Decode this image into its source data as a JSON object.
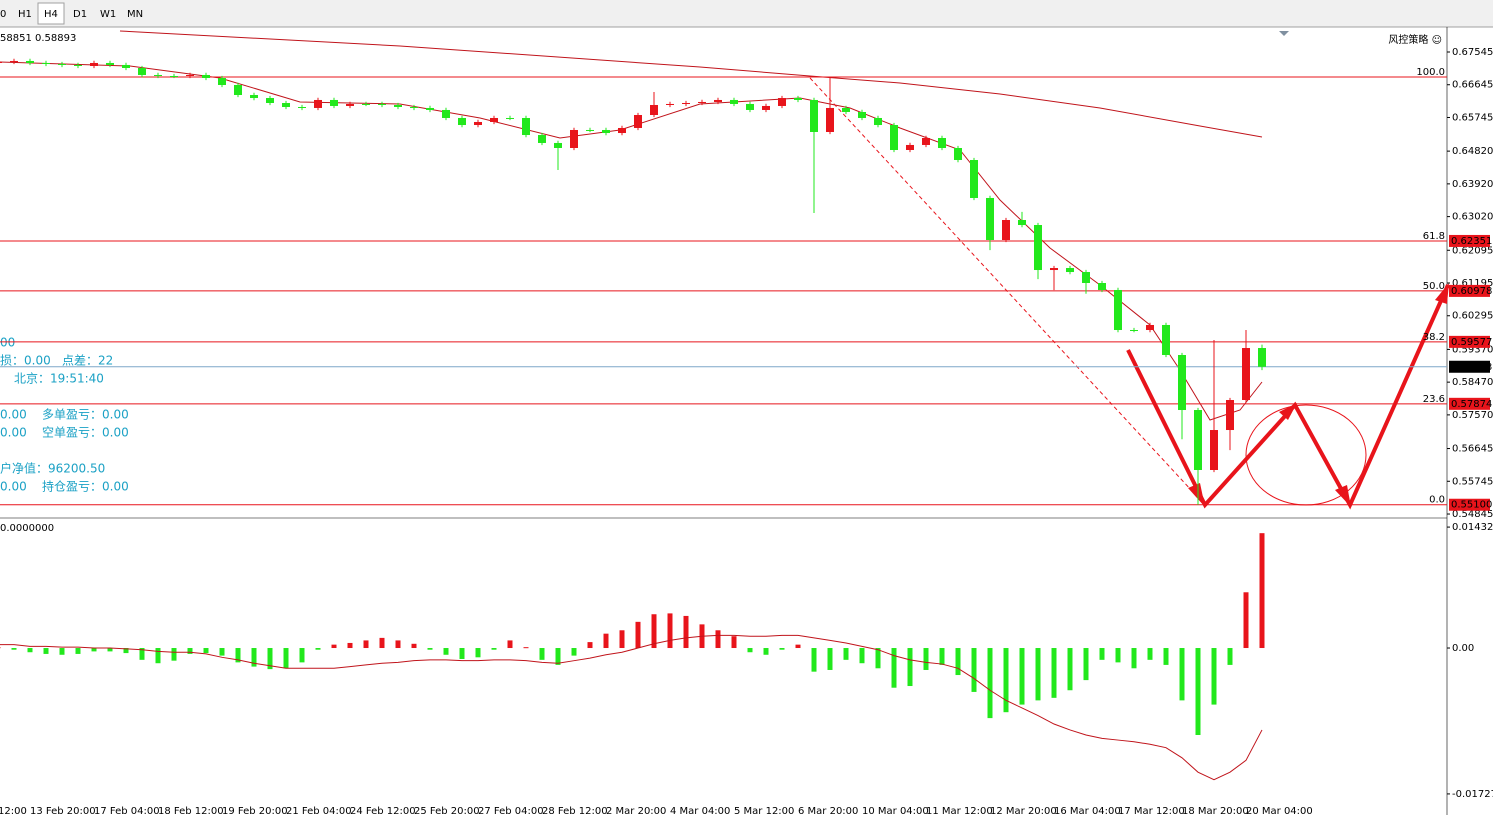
{
  "toolbar": {
    "tabs": [
      "0",
      "H1",
      "H4",
      "D1",
      "W1",
      "MN"
    ],
    "active": 2
  },
  "quote": "58851 0.58893",
  "corner_label": "风控策略 ☺",
  "info": {
    "line0": "00",
    "line1a": "损：0.00",
    "line1b": "点差：22",
    "line2": "北京：19:51:40",
    "line3a": "0.00",
    "line3b": "多单盈亏：0.00",
    "line4a": "0.00",
    "line4b": "空单盈亏：0.00",
    "line5": "户净值：96200.50",
    "line6a": "0.00",
    "line6b": "持仓盈亏：0.00"
  },
  "chart_data": [
    {
      "type": "candlestick",
      "up_color": "#e8141b",
      "down_color": "#22e81c",
      "categories": [
        "12:00",
        null,
        "13 Feb 20:00",
        null,
        null,
        null,
        "17 Feb 04:00",
        null,
        null,
        null,
        "18 Feb 12:00",
        null,
        null,
        null,
        "19 Feb 20:00",
        null,
        null,
        null,
        "21 Feb 04:00",
        null,
        null,
        null,
        "24 Feb 12:00",
        null,
        null,
        null,
        "25 Feb 20:00",
        null,
        null,
        null,
        "27 Feb 04:00",
        null,
        null,
        null,
        "28 Feb 12:00",
        null,
        null,
        null,
        "2 Mar 20:00",
        null,
        null,
        null,
        "4 Mar 04:00",
        null,
        null,
        null,
        "5 Mar 12:00",
        null,
        null,
        null,
        "6 Mar 20:00",
        null,
        null,
        null,
        "10 Mar 04:00",
        null,
        null,
        null,
        "11 Mar 12:00",
        null,
        null,
        null,
        "12 Mar 20:00",
        null,
        null,
        null,
        "16 Mar 04:00",
        null,
        null,
        null,
        "17 Mar 12:00",
        null,
        null,
        null,
        "18 Mar 20:00",
        null,
        null,
        null,
        "20 Mar 04:00",
        null
      ],
      "open": [
        0.67243,
        0.6727,
        0.67298,
        0.67243,
        0.67215,
        0.67188,
        0.6716,
        0.67243,
        0.67188,
        0.67105,
        0.66913,
        0.66885,
        0.66885,
        0.66913,
        0.6683,
        0.66638,
        0.66363,
        0.6628,
        0.66143,
        0.66033,
        0.66006,
        0.66226,
        0.66061,
        0.66116,
        0.66116,
        0.66088,
        0.66033,
        0.66006,
        0.65951,
        0.65731,
        0.65538,
        0.65621,
        0.65731,
        0.65731,
        0.65263,
        0.65044,
        0.64906,
        0.65401,
        0.65401,
        0.65318,
        0.65456,
        0.65813,
        0.66088,
        0.66116,
        0.66143,
        0.66171,
        0.66226,
        0.66116,
        0.65951,
        0.66061,
        0.6628,
        0.66226,
        0.65346,
        0.66006,
        0.65896,
        0.65731,
        0.65538,
        0.64851,
        0.64989,
        0.65181,
        0.64906,
        0.64576,
        0.63532,
        0.62377,
        0.62927,
        0.62789,
        0.61552,
        0.61607,
        0.61497,
        0.61195,
        0.61003,
        0.59903,
        0.59903,
        0.60041,
        0.59216,
        0.57704,
        0.56055,
        0.57154,
        0.57979,
        0.59408
      ],
      "high": [
        0.6733,
        0.67358,
        0.67358,
        0.67303,
        0.67275,
        0.67248,
        0.67303,
        0.67303,
        0.67248,
        0.67165,
        0.66973,
        0.66945,
        0.66973,
        0.66973,
        0.6689,
        0.66698,
        0.66423,
        0.6634,
        0.66203,
        0.66093,
        0.66286,
        0.66286,
        0.66176,
        0.66176,
        0.66176,
        0.66148,
        0.66093,
        0.66066,
        0.66011,
        0.65791,
        0.65681,
        0.65791,
        0.65791,
        0.65791,
        0.65323,
        0.65104,
        0.65461,
        0.65461,
        0.65461,
        0.65516,
        0.65873,
        0.66445,
        0.66176,
        0.66203,
        0.66231,
        0.66286,
        0.66286,
        0.66176,
        0.66121,
        0.6634,
        0.6634,
        0.66286,
        0.6683,
        0.66066,
        0.65956,
        0.65791,
        0.65598,
        0.65049,
        0.65241,
        0.65241,
        0.64966,
        0.64636,
        0.63592,
        0.62987,
        0.6315,
        0.62849,
        0.61667,
        0.61667,
        0.61557,
        0.61255,
        0.61063,
        0.59963,
        0.60101,
        0.60101,
        0.59276,
        0.57764,
        0.59628,
        0.58039,
        0.59903,
        0.595
      ],
      "low": [
        0.67183,
        0.6721,
        0.67183,
        0.67155,
        0.67128,
        0.671,
        0.671,
        0.67128,
        0.67045,
        0.66853,
        0.66825,
        0.66825,
        0.66825,
        0.6677,
        0.66578,
        0.66303,
        0.6622,
        0.66083,
        0.65973,
        0.65946,
        0.65946,
        0.66001,
        0.66001,
        0.66056,
        0.66028,
        0.65973,
        0.65946,
        0.65891,
        0.65671,
        0.65478,
        0.65478,
        0.65561,
        0.65671,
        0.65203,
        0.64984,
        0.643,
        0.64846,
        0.65341,
        0.65258,
        0.65258,
        0.65396,
        0.65753,
        0.66028,
        0.66056,
        0.66083,
        0.66111,
        0.66056,
        0.65891,
        0.65891,
        0.66001,
        0.66166,
        0.63119,
        0.65286,
        0.65836,
        0.65671,
        0.65478,
        0.64791,
        0.64791,
        0.64929,
        0.64846,
        0.64516,
        0.63472,
        0.621,
        0.62317,
        0.62729,
        0.613,
        0.61,
        0.61437,
        0.609,
        0.60943,
        0.59843,
        0.59843,
        0.59843,
        0.59156,
        0.569,
        0.551,
        0.55995,
        0.566,
        0.57919,
        0.588
      ],
      "close": [
        0.6727,
        0.67298,
        0.67243,
        0.67215,
        0.67188,
        0.6716,
        0.67243,
        0.67188,
        0.67105,
        0.66913,
        0.66885,
        0.66885,
        0.66913,
        0.6683,
        0.66638,
        0.66363,
        0.6628,
        0.66143,
        0.66033,
        0.66006,
        0.66226,
        0.66061,
        0.66116,
        0.66116,
        0.66088,
        0.66033,
        0.66006,
        0.65951,
        0.65731,
        0.65538,
        0.65621,
        0.65731,
        0.65731,
        0.65263,
        0.65044,
        0.64906,
        0.65401,
        0.65401,
        0.65318,
        0.65456,
        0.65813,
        0.66088,
        0.66116,
        0.66143,
        0.66171,
        0.66226,
        0.66116,
        0.65951,
        0.66061,
        0.6628,
        0.66226,
        0.65346,
        0.66006,
        0.65896,
        0.65731,
        0.65538,
        0.64851,
        0.64989,
        0.65181,
        0.64906,
        0.64576,
        0.63532,
        0.62377,
        0.62927,
        0.62789,
        0.61552,
        0.61607,
        0.61497,
        0.61195,
        0.61003,
        0.59903,
        0.59903,
        0.60041,
        0.59216,
        0.57704,
        0.56055,
        0.57154,
        0.57979,
        0.59408,
        0.58893
      ],
      "ylim": [
        0.54818,
        0.68232
      ],
      "yticks": [
        0.67545,
        0.66645,
        0.65745,
        {
          "value": 0.6482,
          "label": "0.64820"
        },
        {
          "value": 0.6392,
          "label": "0.63920"
        },
        {
          "value": 0.6302,
          "label": "0.63020"
        },
        0.62095,
        0.61195,
        0.60295,
        {
          "value": 0.5937,
          "label": "0.59370"
        },
        {
          "value": 0.5847,
          "label": "0.58470"
        },
        {
          "value": 0.5757,
          "label": "0.57570"
        },
        0.56645,
        0.55745,
        0.54845
      ],
      "fib": {
        "levels": [
          "100.0",
          "61.8",
          "50.0",
          "38.2",
          "23.6",
          "0.0"
        ],
        "values": [
          0.66856,
          0.62351,
          0.60978,
          0.59577,
          0.57874,
          0.551
        ],
        "value_labels": [
          null,
          "0.62351",
          "0.60978",
          "0.59577",
          "0.57874",
          "0.55100"
        ],
        "color": "#e8141b"
      },
      "last_price": 0.58893
    },
    {
      "type": "macd",
      "label": "0.0000000",
      "values": [
        0.0001,
        -0.0002,
        -0.0005,
        -0.0007,
        -0.0008,
        -0.0007,
        -0.0004,
        -0.0004,
        -0.0006,
        -0.0014,
        -0.0018,
        -0.0015,
        -0.0007,
        -0.0006,
        -0.0009,
        -0.0017,
        -0.0022,
        -0.0025,
        -0.0024,
        -0.0017,
        -0.0002,
        0.0004,
        0.0006,
        0.0009,
        0.0012,
        0.0009,
        0.0005,
        -0.0002,
        -0.0008,
        -0.0013,
        -0.0011,
        -0.0002,
        0.0009,
        0.0001,
        -0.0014,
        -0.002,
        -0.0009,
        0.0007,
        0.0017,
        0.0021,
        0.0031,
        0.004,
        0.0041,
        0.0038,
        0.0028,
        0.0021,
        0.0014,
        -0.0005,
        -0.0008,
        -0.0002,
        0.0004,
        -0.0028,
        -0.0026,
        -0.0014,
        -0.0018,
        -0.0024,
        -0.0047,
        -0.0045,
        -0.0026,
        -0.002,
        -0.0032,
        -0.0052,
        -0.0083,
        -0.0076,
        -0.0067,
        -0.0062,
        -0.0059,
        -0.005,
        -0.0038,
        -0.0014,
        -0.0017,
        -0.0024,
        -0.0014,
        -0.002,
        -0.0062,
        -0.0103,
        -0.0067,
        -0.002,
        0.0066,
        0.0136
      ],
      "line": [
        0.0004,
        0.0004,
        0.0002,
        0.0002,
        0.0001,
        0.0001,
        0,
        0,
        -0.0001,
        -0.0002,
        -0.0004,
        -0.0005,
        -0.0005,
        -0.0007,
        -0.0011,
        -0.0014,
        -0.0018,
        -0.0021,
        -0.0024,
        -0.0024,
        -0.0024,
        -0.0024,
        -0.0022,
        -0.002,
        -0.0018,
        -0.0017,
        -0.0015,
        -0.0014,
        -0.0014,
        -0.0015,
        -0.0015,
        -0.0014,
        -0.0014,
        -0.0015,
        -0.0017,
        -0.0018,
        -0.0015,
        -0.0012,
        -0.0008,
        -0.0005,
        0,
        0.0005,
        0.0009,
        0.0012,
        0.0014,
        0.0015,
        0.0015,
        0.0014,
        0.0014,
        0.0015,
        0.0015,
        0.0012,
        0.0009,
        0.0006,
        0.0002,
        -0.0002,
        -0.0009,
        -0.0014,
        -0.0017,
        -0.0019,
        -0.0024,
        -0.0036,
        -0.005,
        -0.0062,
        -0.0071,
        -0.008,
        -0.009,
        -0.0097,
        -0.0103,
        -0.0107,
        -0.0109,
        -0.0111,
        -0.0114,
        -0.0118,
        -0.013,
        -0.0147,
        -0.0156,
        -0.0147,
        -0.0133,
        -0.0097
      ],
      "line_color": "#c0141b",
      "up_color": "#e8141b",
      "down_color": "#22e81c",
      "ylim": [
        -0.01859,
        0.01516
      ],
      "yticks": [
        0.0143208,
        {
          "value": 0,
          "label": "0.00"
        },
        -0.017278
      ]
    }
  ]
}
